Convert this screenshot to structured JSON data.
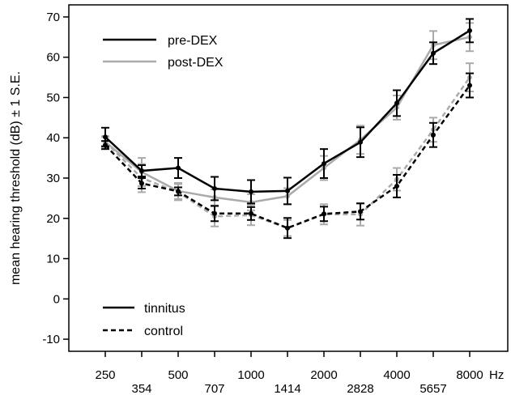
{
  "chart_data": {
    "type": "line",
    "ylabel": "mean hearing threshold (dB) ± 1 S.E.",
    "x_unit": "Hz",
    "x": [
      250,
      354,
      500,
      707,
      1000,
      1414,
      2000,
      2828,
      4000,
      5657,
      8000
    ],
    "x_tick_labels_upper": [
      "250",
      "500",
      "1000",
      "2000",
      "4000",
      "8000"
    ],
    "x_tick_labels_lower": [
      "354",
      "707",
      "1414",
      "2828",
      "5657"
    ],
    "ylim": [
      -13,
      73
    ],
    "y_ticks": [
      -10,
      0,
      10,
      20,
      30,
      40,
      50,
      60,
      70
    ],
    "grid": false,
    "legend_color": {
      "position": "top-left",
      "entries": [
        {
          "label": "pre-DEX",
          "color": "#000000"
        },
        {
          "label": "post-DEX",
          "color": "#aaaaaa"
        }
      ]
    },
    "legend_style": {
      "position": "bottom-left",
      "entries": [
        {
          "label": "tinnitus",
          "dash": "solid"
        },
        {
          "label": "control",
          "dash": "dashed"
        }
      ]
    },
    "series": [
      {
        "name": "pre-DEX tinnitus",
        "color": "#000000",
        "dash": "solid",
        "values": [
          40.2,
          31.8,
          32.5,
          27.4,
          26.6,
          26.8,
          33.6,
          38.9,
          48.6,
          61.0,
          66.6
        ],
        "error": [
          2.3,
          1.4,
          2.5,
          2.9,
          2.9,
          3.3,
          3.6,
          3.7,
          3.2,
          2.7,
          2.9
        ]
      },
      {
        "name": "post-DEX tinnitus",
        "color": "#aaaaaa",
        "dash": "solid",
        "values": [
          39.0,
          31.5,
          26.8,
          25.2,
          24.0,
          25.5,
          32.5,
          39.5,
          47.5,
          63.0,
          65.0
        ],
        "error": [
          1.4,
          3.5,
          2.0,
          2.0,
          2.0,
          2.0,
          3.0,
          3.5,
          3.0,
          3.5,
          3.5
        ]
      },
      {
        "name": "pre-DEX control",
        "color": "#000000",
        "dash": "dashed",
        "values": [
          38.2,
          28.7,
          26.7,
          21.2,
          21.2,
          17.6,
          21.1,
          21.7,
          28.0,
          40.7,
          53.0
        ],
        "error": [
          1.0,
          1.3,
          1.0,
          1.9,
          1.6,
          2.5,
          1.8,
          2.0,
          2.8,
          3.0,
          3.0
        ]
      },
      {
        "name": "post-DEX control",
        "color": "#aaaaaa",
        "dash": "dashed",
        "values": [
          39.0,
          30.0,
          26.5,
          20.5,
          20.8,
          17.6,
          21.0,
          21.0,
          29.7,
          42.0,
          55.0
        ],
        "error": [
          1.2,
          3.5,
          2.0,
          2.5,
          2.5,
          2.0,
          2.5,
          2.8,
          2.8,
          3.0,
          3.5
        ]
      }
    ]
  }
}
